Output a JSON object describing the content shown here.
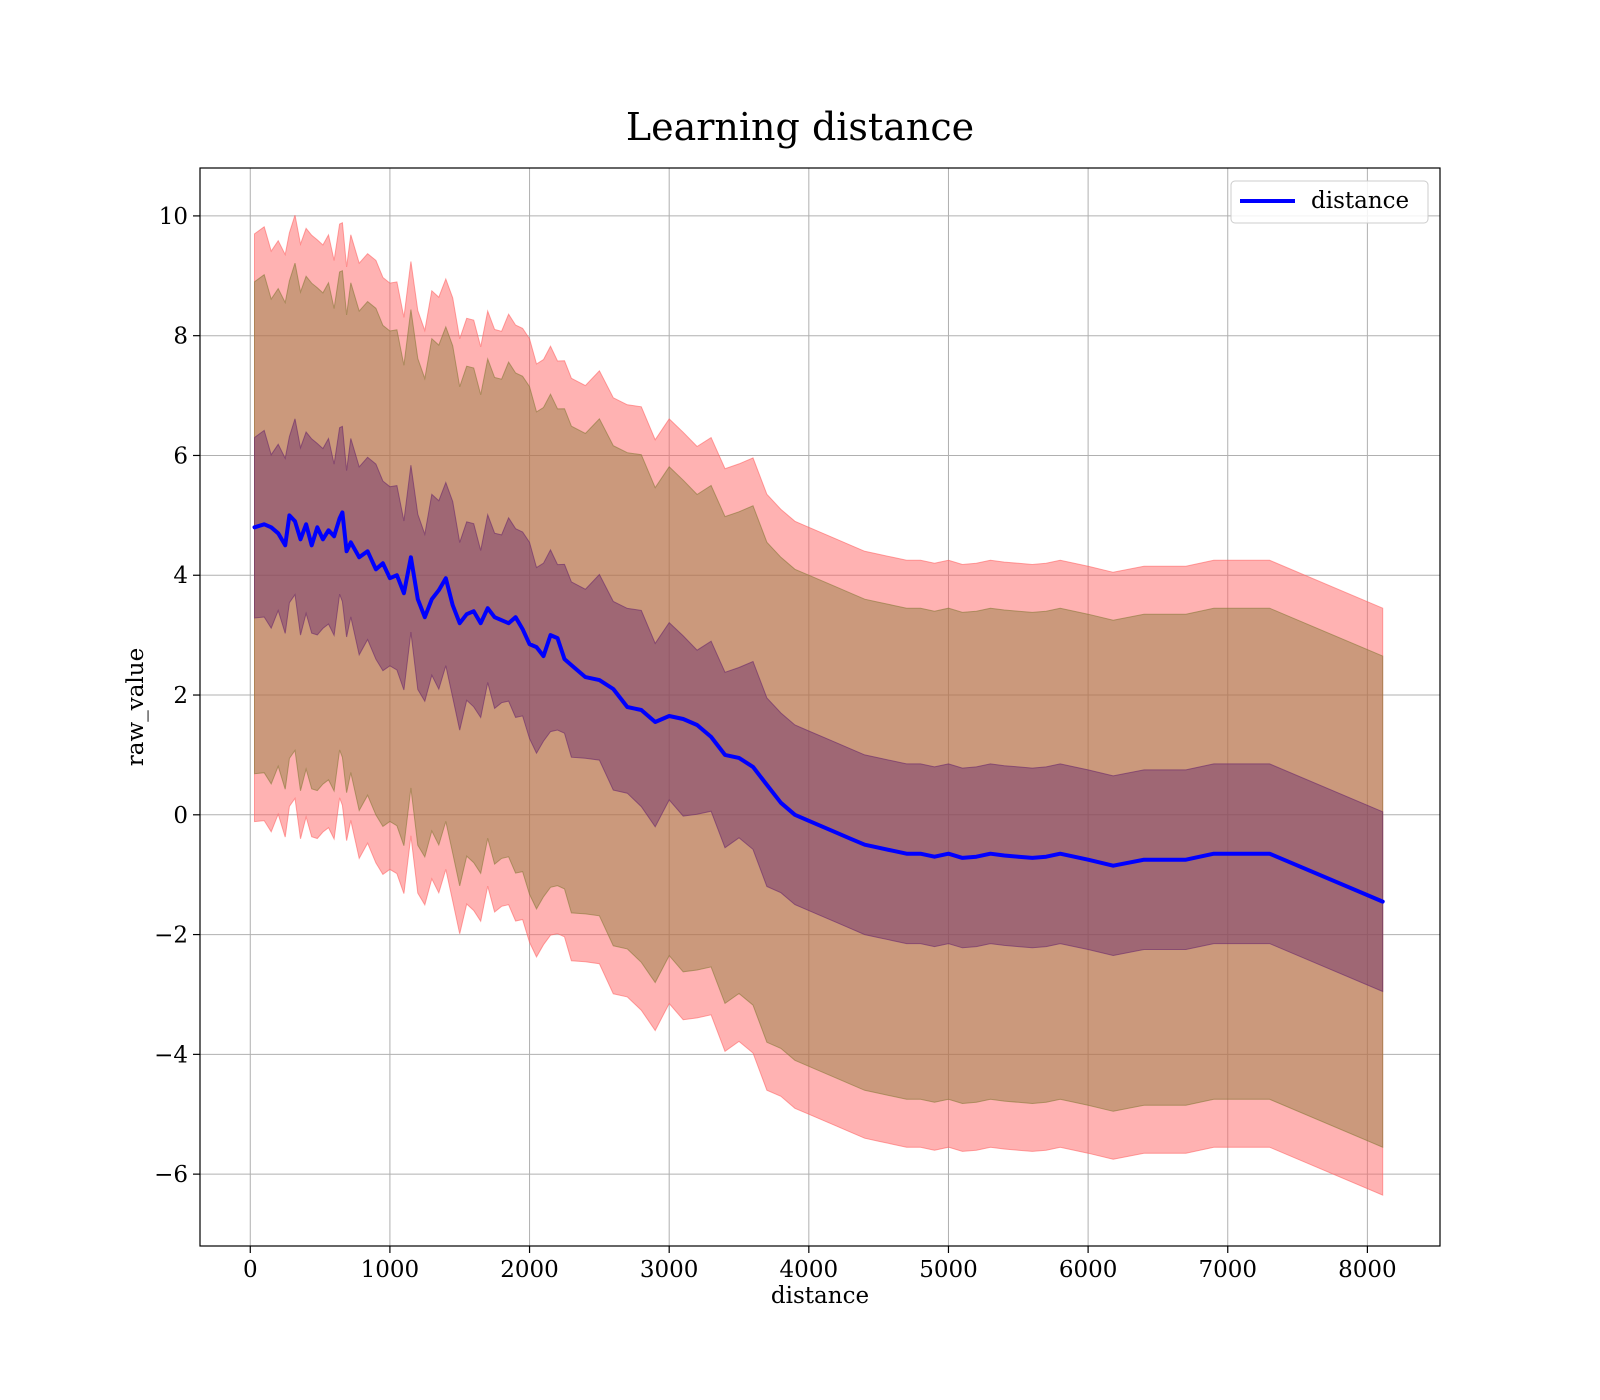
{
  "chart_data": {
    "type": "line",
    "title": "Learning distance",
    "xlabel": "distance",
    "ylabel": "raw_value",
    "xlim": [
      -360,
      8520
    ],
    "ylim": [
      -7.2,
      10.8
    ],
    "xticks": [
      0,
      1000,
      2000,
      3000,
      4000,
      5000,
      6000,
      7000,
      8000
    ],
    "yticks": [
      -6,
      -4,
      -2,
      0,
      2,
      4,
      6,
      8,
      10
    ],
    "xtick_labels": [
      "0",
      "1000",
      "2000",
      "3000",
      "4000",
      "5000",
      "6000",
      "7000",
      "8000"
    ],
    "ytick_labels": [
      "−6",
      "−4",
      "−2",
      "0",
      "2",
      "4",
      "6",
      "8",
      "10"
    ],
    "grid": true,
    "legend_position": "top-right",
    "series": [
      {
        "name": "distance",
        "color": "#0000ff",
        "x": [
          30,
          100,
          150,
          200,
          250,
          280,
          320,
          360,
          400,
          440,
          480,
          520,
          560,
          600,
          640,
          660,
          690,
          720,
          780,
          840,
          900,
          950,
          1000,
          1050,
          1100,
          1150,
          1200,
          1250,
          1300,
          1350,
          1400,
          1450,
          1500,
          1550,
          1600,
          1650,
          1700,
          1750,
          1800,
          1850,
          1900,
          1950,
          2000,
          2050,
          2100,
          2150,
          2200,
          2250,
          2300,
          2400,
          2500,
          2600,
          2700,
          2800,
          2900,
          3000,
          3100,
          3200,
          3300,
          3400,
          3500,
          3600,
          3700,
          3800,
          3900,
          4000,
          4100,
          4200,
          4300,
          4400,
          4500,
          4600,
          4700,
          4800,
          4900,
          5000,
          5100,
          5200,
          5300,
          5400,
          5500,
          5600,
          5700,
          5800,
          6000,
          6180,
          6400,
          6700,
          6900,
          7300,
          8110
        ],
        "y": [
          4.8,
          4.85,
          4.8,
          4.7,
          4.5,
          5.0,
          4.9,
          4.6,
          4.85,
          4.5,
          4.8,
          4.6,
          4.75,
          4.65,
          4.95,
          5.05,
          4.4,
          4.55,
          4.3,
          4.4,
          4.1,
          4.2,
          3.95,
          4.0,
          3.7,
          4.3,
          3.6,
          3.3,
          3.6,
          3.75,
          3.95,
          3.5,
          3.2,
          3.35,
          3.4,
          3.2,
          3.45,
          3.3,
          3.25,
          3.2,
          3.3,
          3.1,
          2.85,
          2.8,
          2.65,
          3.0,
          2.95,
          2.6,
          2.5,
          2.3,
          2.25,
          2.1,
          1.8,
          1.75,
          1.55,
          1.65,
          1.6,
          1.5,
          1.3,
          1.0,
          0.95,
          0.8,
          0.5,
          0.2,
          0.0,
          -0.1,
          -0.2,
          -0.3,
          -0.4,
          -0.5,
          -0.55,
          -0.6,
          -0.65,
          -0.65,
          -0.7,
          -0.65,
          -0.72,
          -0.7,
          -0.65,
          -0.68,
          -0.7,
          -0.72,
          -0.7,
          -0.65,
          -0.75,
          -0.85,
          -0.75,
          -0.75,
          -0.65,
          -0.65,
          -1.45
        ]
      }
    ],
    "bands": [
      {
        "name": "outer",
        "color": "#ff6666",
        "opacity": 0.5,
        "offset": 4.9
      },
      {
        "name": "middle",
        "color": "#8b7a3a",
        "opacity": 0.45,
        "offset": 4.1
      },
      {
        "name": "inner",
        "color": "#6a2a6a",
        "opacity": 0.45,
        "offset": 1.5
      }
    ]
  }
}
